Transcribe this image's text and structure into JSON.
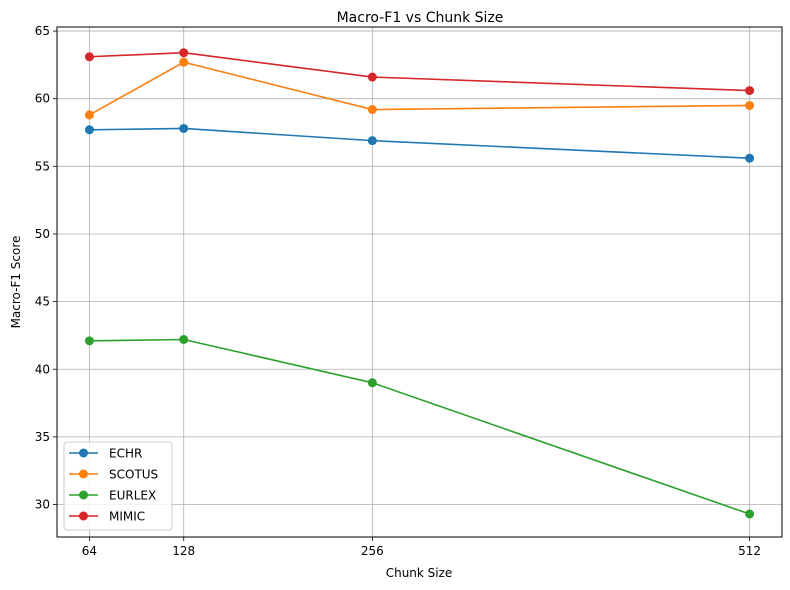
{
  "chart_data": {
    "type": "line",
    "title": "Macro-F1 vs Chunk Size",
    "xlabel": "Chunk Size",
    "ylabel": "Macro-F1 Score",
    "x": [
      64,
      128,
      256,
      512
    ],
    "xticks": [
      "64",
      "128",
      "256",
      "512"
    ],
    "yticks": [
      30,
      35,
      40,
      45,
      50,
      55,
      60,
      65
    ],
    "ylim": [
      27.6,
      65.3
    ],
    "xlim": [
      42,
      534
    ],
    "grid": true,
    "legend_position": "lower left",
    "series": [
      {
        "name": "ECHR",
        "color": "#1f77b4",
        "values": [
          57.7,
          57.8,
          56.9,
          55.6
        ]
      },
      {
        "name": "SCOTUS",
        "color": "#ff7f0e",
        "values": [
          58.8,
          62.7,
          59.2,
          59.5
        ]
      },
      {
        "name": "EURLEX",
        "color": "#2ca02c",
        "values": [
          42.1,
          42.2,
          39.0,
          29.3
        ]
      },
      {
        "name": "MIMIC",
        "color": "#d62728",
        "values": [
          63.1,
          63.4,
          61.6,
          60.6
        ]
      }
    ]
  }
}
